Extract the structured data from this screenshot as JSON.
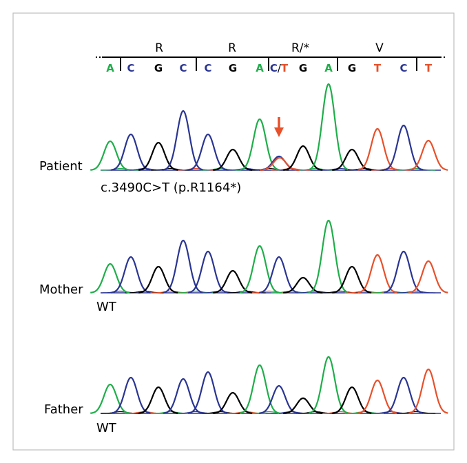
{
  "codons": [
    "R",
    "R",
    "R/*",
    "V"
  ],
  "bases": [
    {
      "text": "A",
      "color": "#1fae4a"
    },
    {
      "text": "C",
      "color": "#2a3592"
    },
    {
      "text": "G",
      "color": "#000000"
    },
    {
      "text": "C",
      "color": "#2a3592"
    },
    {
      "text": "C",
      "color": "#2a3592"
    },
    {
      "text": "G",
      "color": "#000000"
    },
    {
      "text": "A",
      "color": "#1fae4a"
    },
    {
      "text": "C/T",
      "color": "#2a3592",
      "alt_color": "#e8502a"
    },
    {
      "text": "G",
      "color": "#000000"
    },
    {
      "text": "A",
      "color": "#1fae4a"
    },
    {
      "text": "G",
      "color": "#000000"
    },
    {
      "text": "T",
      "color": "#e8502a"
    },
    {
      "text": "C",
      "color": "#2a3592"
    },
    {
      "text": "T",
      "color": "#e8502a"
    }
  ],
  "colors": {
    "A": "#1fae4a",
    "C": "#2a3592",
    "G": "#000000",
    "T": "#e8502a",
    "arrow": "#e8502a",
    "frame": "#bfbfbf"
  },
  "traces": [
    {
      "name": "Patient",
      "variant": "c.3490C>T (p.R1164*)",
      "peaks": [
        {
          "base": "A",
          "height": 0.42
        },
        {
          "base": "C",
          "height": 0.52
        },
        {
          "base": "G",
          "height": 0.4
        },
        {
          "base": "C",
          "height": 0.86
        },
        {
          "base": "C",
          "height": 0.52
        },
        {
          "base": "G",
          "height": 0.3
        },
        {
          "base": "A",
          "height": 0.74
        },
        {
          "base": "C",
          "height": 0.2,
          "overlay": {
            "base": "T",
            "height": 0.18
          }
        },
        {
          "base": "G",
          "height": 0.35
        },
        {
          "base": "A",
          "height": 1.25
        },
        {
          "base": "G",
          "height": 0.3
        },
        {
          "base": "T",
          "height": 0.6
        },
        {
          "base": "C",
          "height": 0.65
        },
        {
          "base": "T",
          "height": 0.43
        }
      ]
    },
    {
      "name": "Mother",
      "variant": "WT",
      "peaks": [
        {
          "base": "A",
          "height": 0.42
        },
        {
          "base": "C",
          "height": 0.52
        },
        {
          "base": "G",
          "height": 0.38
        },
        {
          "base": "C",
          "height": 0.76
        },
        {
          "base": "C",
          "height": 0.6
        },
        {
          "base": "G",
          "height": 0.32
        },
        {
          "base": "A",
          "height": 0.68
        },
        {
          "base": "C",
          "height": 0.52
        },
        {
          "base": "G",
          "height": 0.22
        },
        {
          "base": "A",
          "height": 1.05
        },
        {
          "base": "G",
          "height": 0.38
        },
        {
          "base": "T",
          "height": 0.55
        },
        {
          "base": "C",
          "height": 0.6
        },
        {
          "base": "T",
          "height": 0.46
        }
      ]
    },
    {
      "name": "Father",
      "variant": "WT",
      "peaks": [
        {
          "base": "A",
          "height": 0.42
        },
        {
          "base": "C",
          "height": 0.52
        },
        {
          "base": "G",
          "height": 0.38
        },
        {
          "base": "C",
          "height": 0.5
        },
        {
          "base": "C",
          "height": 0.6
        },
        {
          "base": "G",
          "height": 0.3
        },
        {
          "base": "A",
          "height": 0.7
        },
        {
          "base": "C",
          "height": 0.4
        },
        {
          "base": "G",
          "height": 0.22
        },
        {
          "base": "A",
          "height": 0.82
        },
        {
          "base": "G",
          "height": 0.38
        },
        {
          "base": "T",
          "height": 0.48
        },
        {
          "base": "C",
          "height": 0.52
        },
        {
          "base": "T",
          "height": 0.64
        }
      ]
    }
  ]
}
